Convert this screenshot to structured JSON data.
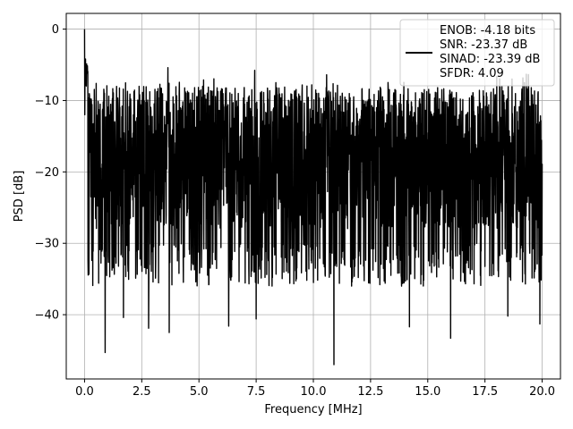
{
  "chart_data": {
    "type": "line",
    "title": "",
    "xlabel": "Frequency [MHz]",
    "ylabel": "PSD [dB]",
    "xlim": [
      -0.8,
      20.8
    ],
    "ylim": [
      -49,
      2.2
    ],
    "xticks": [
      0.0,
      2.5,
      5.0,
      7.5,
      10.0,
      12.5,
      15.0,
      17.5,
      20.0
    ],
    "xtick_labels": [
      "0.0",
      "2.5",
      "5.0",
      "7.5",
      "10.0",
      "12.5",
      "15.0",
      "17.5",
      "20.0"
    ],
    "yticks": [
      0,
      -10,
      -20,
      -30,
      -40
    ],
    "ytick_labels": [
      "0",
      "−10",
      "−20",
      "−30",
      "−40"
    ],
    "grid": true,
    "legend_position": "top-right",
    "series": [
      {
        "name": "",
        "color": "#000000",
        "x_range": [
          0,
          20
        ],
        "peak": {
          "x": 0.0,
          "y": 0.0
        },
        "typical_level": -18,
        "typical_upper": -8,
        "typical_lower": -30,
        "min": {
          "x": 10.9,
          "y": -47
        },
        "notable_dips": [
          {
            "x": 0.9,
            "y": -45.3
          },
          {
            "x": 1.7,
            "y": -40.4
          },
          {
            "x": 2.8,
            "y": -41.9
          },
          {
            "x": 3.7,
            "y": -42.5
          },
          {
            "x": 6.3,
            "y": -41.6
          },
          {
            "x": 7.5,
            "y": -40.6
          },
          {
            "x": 10.9,
            "y": -47.0
          },
          {
            "x": 14.2,
            "y": -41.7
          },
          {
            "x": 16.0,
            "y": -43.3
          },
          {
            "x": 18.5,
            "y": -40.2
          },
          {
            "x": 19.9,
            "y": -41.3
          }
        ]
      }
    ],
    "legend_lines": [
      "ENOB: -4.18 bits",
      "SNR: -23.37 dB",
      "SINAD: -23.39 dB",
      "SFDR: 4.09"
    ]
  }
}
